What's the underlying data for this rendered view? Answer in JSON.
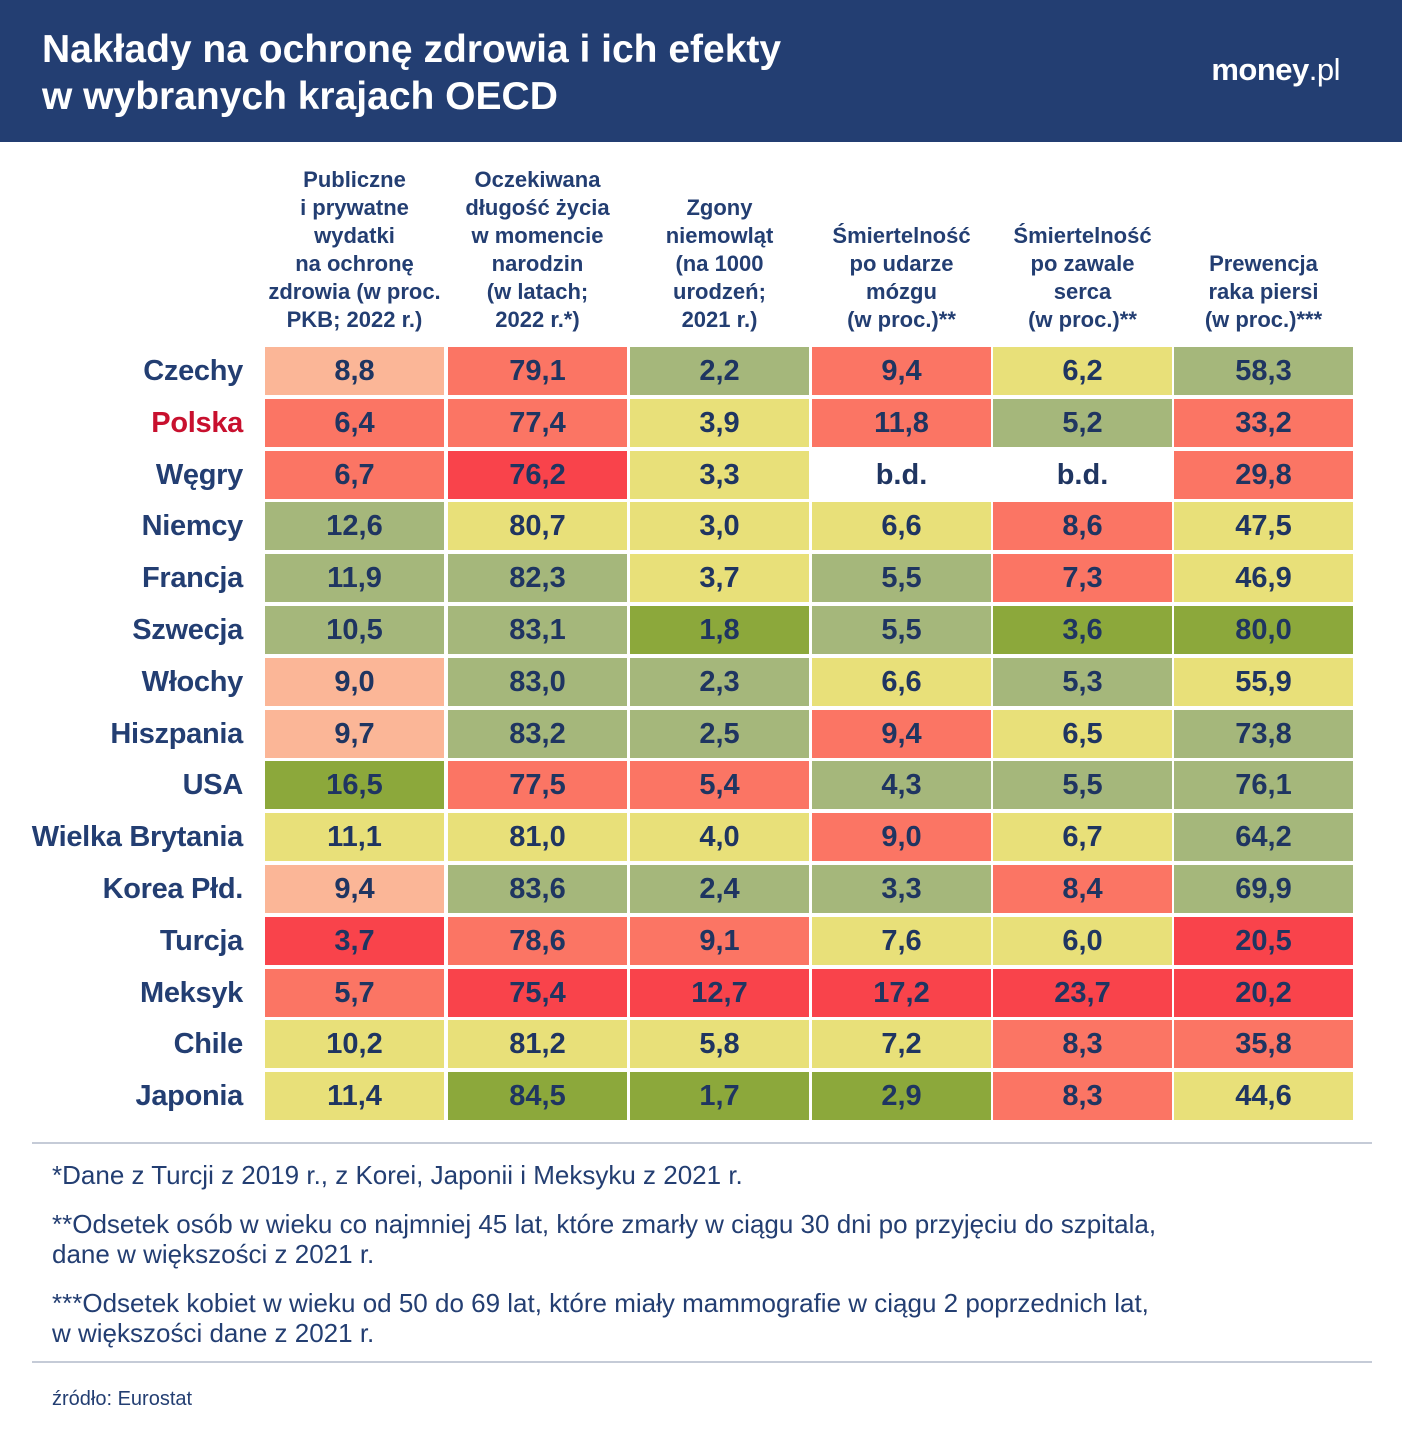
{
  "header": {
    "title_line1": "Nakłady na ochronę zdrowia i ich efekty",
    "title_line2": "w wybranych krajach OECD",
    "logo_main": "money",
    "logo_tld": ".pl",
    "background": "#233e72"
  },
  "chart_data": {
    "type": "table",
    "title": "Nakłady na ochronę zdrowia i ich efekty w wybranych krajach OECD",
    "columns": [
      "Publiczne\ni prywatne\nwydatki\nna ochronę\nzdrowia (w proc.\nPKB; 2022 r.)",
      "Oczekiwana\ndługość życia\nw momencie\nnarodzin\n(w latach;\n2022 r.*)",
      "Zgony\nniemowląt\n(na 1000\nurodzeń;\n2021 r.)",
      "Śmiertelność\npo udarze\nmózgu\n(w proc.)**",
      "Śmiertelność\npo zawale\nserca\n(w proc.)**",
      "Prewencja\nraka piersi\n(w proc.)***"
    ],
    "rows": [
      {
        "country": "Czechy",
        "values": [
          "8,8",
          "79,1",
          "2,2",
          "9,4",
          "6,2",
          "58,3"
        ],
        "colors": [
          "#fbb697",
          "#fb7564",
          "#a5b77b",
          "#fb7564",
          "#e8e079",
          "#a5b77b"
        ]
      },
      {
        "country": "Polska",
        "highlight": true,
        "values": [
          "6,4",
          "77,4",
          "3,9",
          "11,8",
          "5,2",
          "33,2"
        ],
        "colors": [
          "#fb7564",
          "#fb7564",
          "#e8e079",
          "#fb7564",
          "#a5b77b",
          "#fb7564"
        ]
      },
      {
        "country": "Węgry",
        "values": [
          "6,7",
          "76,2",
          "3,3",
          "b.d.",
          "b.d.",
          "29,8"
        ],
        "colors": [
          "#fb7564",
          "#f9434b",
          "#e8e079",
          "#ffffff",
          "#ffffff",
          "#fb7564"
        ]
      },
      {
        "country": "Niemcy",
        "values": [
          "12,6",
          "80,7",
          "3,0",
          "6,6",
          "8,6",
          "47,5"
        ],
        "colors": [
          "#a5b77b",
          "#e8e079",
          "#e8e079",
          "#e8e079",
          "#fb7564",
          "#e8e079"
        ]
      },
      {
        "country": "Francja",
        "values": [
          "11,9",
          "82,3",
          "3,7",
          "5,5",
          "7,3",
          "46,9"
        ],
        "colors": [
          "#a5b77b",
          "#a5b77b",
          "#e8e079",
          "#a5b77b",
          "#fb7564",
          "#e8e079"
        ]
      },
      {
        "country": "Szwecja",
        "values": [
          "10,5",
          "83,1",
          "1,8",
          "5,5",
          "3,6",
          "80,0"
        ],
        "colors": [
          "#a5b77b",
          "#a5b77b",
          "#8ca83b",
          "#a5b77b",
          "#8ca83b",
          "#8ca83b"
        ]
      },
      {
        "country": "Włochy",
        "values": [
          "9,0",
          "83,0",
          "2,3",
          "6,6",
          "5,3",
          "55,9"
        ],
        "colors": [
          "#fbb697",
          "#a5b77b",
          "#a5b77b",
          "#e8e079",
          "#a5b77b",
          "#e8e079"
        ]
      },
      {
        "country": "Hiszpania",
        "values": [
          "9,7",
          "83,2",
          "2,5",
          "9,4",
          "6,5",
          "73,8"
        ],
        "colors": [
          "#fbb697",
          "#a5b77b",
          "#a5b77b",
          "#fb7564",
          "#e8e079",
          "#a5b77b"
        ]
      },
      {
        "country": "USA",
        "values": [
          "16,5",
          "77,5",
          "5,4",
          "4,3",
          "5,5",
          "76,1"
        ],
        "colors": [
          "#8ca83b",
          "#fb7564",
          "#fb7564",
          "#a5b77b",
          "#a5b77b",
          "#a5b77b"
        ]
      },
      {
        "country": "Wielka Brytania",
        "values": [
          "11,1",
          "81,0",
          "4,0",
          "9,0",
          "6,7",
          "64,2"
        ],
        "colors": [
          "#e8e079",
          "#e8e079",
          "#e8e079",
          "#fb7564",
          "#e8e079",
          "#a5b77b"
        ]
      },
      {
        "country": "Korea Płd.",
        "values": [
          "9,4",
          "83,6",
          "2,4",
          "3,3",
          "8,4",
          "69,9"
        ],
        "colors": [
          "#fbb697",
          "#a5b77b",
          "#a5b77b",
          "#a5b77b",
          "#fb7564",
          "#a5b77b"
        ]
      },
      {
        "country": "Turcja",
        "values": [
          "3,7",
          "78,6",
          "9,1",
          "7,6",
          "6,0",
          "20,5"
        ],
        "colors": [
          "#f9434b",
          "#fb7564",
          "#fb7564",
          "#e8e079",
          "#e8e079",
          "#f9434b"
        ]
      },
      {
        "country": "Meksyk",
        "values": [
          "5,7",
          "75,4",
          "12,7",
          "17,2",
          "23,7",
          "20,2"
        ],
        "colors": [
          "#fb7564",
          "#f9434b",
          "#f9434b",
          "#f9434b",
          "#f9434b",
          "#f9434b"
        ]
      },
      {
        "country": "Chile",
        "values": [
          "10,2",
          "81,2",
          "5,8",
          "7,2",
          "8,3",
          "35,8"
        ],
        "colors": [
          "#e8e079",
          "#e8e079",
          "#e8e079",
          "#e8e079",
          "#fb7564",
          "#fb7564"
        ]
      },
      {
        "country": "Japonia",
        "values": [
          "11,4",
          "84,5",
          "1,7",
          "2,9",
          "8,3",
          "44,6"
        ],
        "colors": [
          "#e8e079",
          "#8ca83b",
          "#8ca83b",
          "#8ca83b",
          "#fb7564",
          "#e8e079"
        ]
      }
    ]
  },
  "footnotes": {
    "note1": "*Dane z Turcji z 2019 r., z Korei, Japonii i Meksyku z 2021 r.",
    "note2": "**Odsetek osób w wieku co najmniej 45 lat, które zmarły w ciągu 30 dni po przyjęciu do szpitala,\ndane w większości z 2021 r.",
    "note3": "***Odsetek kobiet w wieku od 50 do 69 lat, które miały mammografie w ciągu 2 poprzednich lat,\nw większości dane z 2021 r.",
    "source": "źródło: Eurostat"
  }
}
